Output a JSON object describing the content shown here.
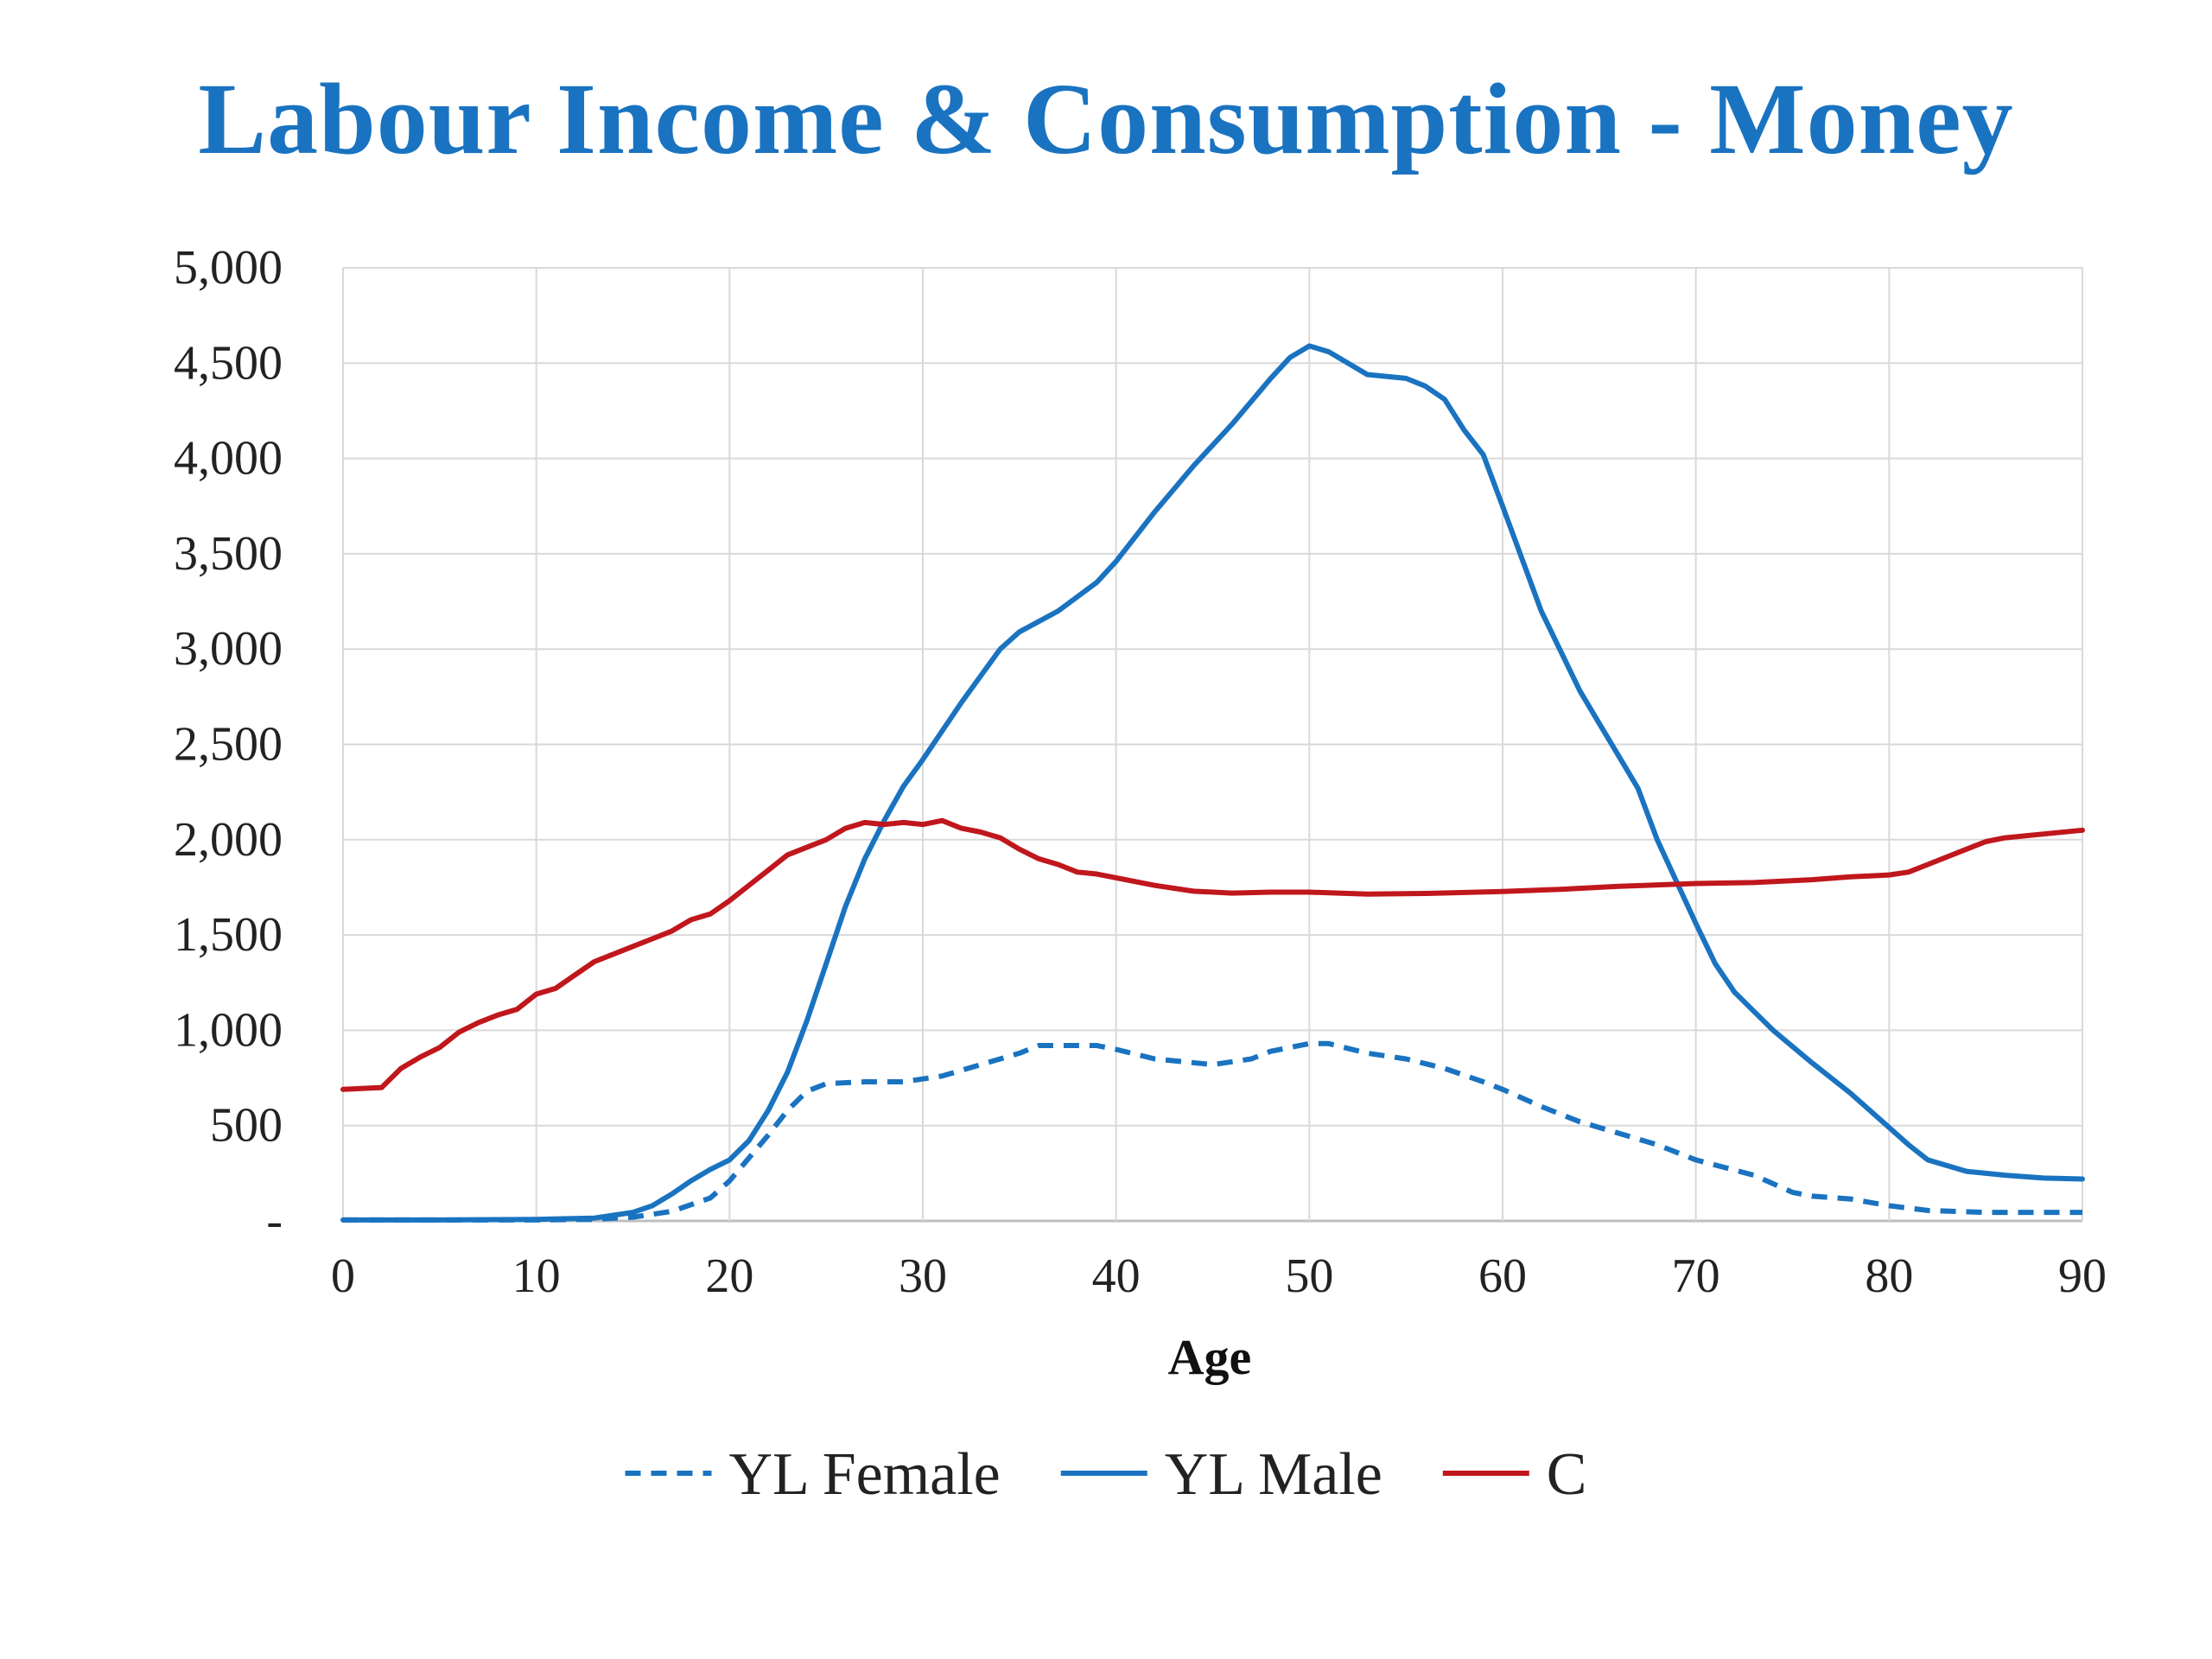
{
  "chart_data": {
    "type": "line",
    "title": "Labour Income & Consumption - Money",
    "xlabel": "Age",
    "ylabel": "",
    "xlim": [
      0,
      90
    ],
    "ylim": [
      0,
      5000
    ],
    "x_ticks": [
      0,
      10,
      20,
      30,
      40,
      50,
      60,
      70,
      80,
      90
    ],
    "x_tick_labels": [
      "0",
      "10",
      "20",
      "30",
      "40",
      "50",
      "60",
      "70",
      "80",
      "90"
    ],
    "y_ticks": [
      0,
      500,
      1000,
      1500,
      2000,
      2500,
      3000,
      3500,
      4000,
      4500,
      5000
    ],
    "y_tick_labels": [
      "-",
      "500",
      "1,000",
      "1,500",
      "2,000",
      "2,500",
      "3,000",
      "3,500",
      "4,000",
      "4,500",
      "5,000"
    ],
    "grid": true,
    "legend_position": "bottom",
    "series": [
      {
        "name": "YL Female",
        "color": "#1a73c0",
        "line_style": "dashed",
        "points": [
          [
            0,
            5
          ],
          [
            5,
            5
          ],
          [
            10,
            5
          ],
          [
            13,
            8
          ],
          [
            15,
            20
          ],
          [
            17,
            50
          ],
          [
            19,
            120
          ],
          [
            20,
            210
          ],
          [
            21,
            330
          ],
          [
            22,
            450
          ],
          [
            23,
            580
          ],
          [
            24,
            680
          ],
          [
            25,
            720
          ],
          [
            27,
            730
          ],
          [
            29,
            730
          ],
          [
            31,
            760
          ],
          [
            33,
            820
          ],
          [
            35,
            880
          ],
          [
            36,
            920
          ],
          [
            39,
            920
          ],
          [
            40,
            900
          ],
          [
            42,
            850
          ],
          [
            45,
            820
          ],
          [
            47,
            850
          ],
          [
            48,
            890
          ],
          [
            50,
            930
          ],
          [
            51,
            930
          ],
          [
            53,
            880
          ],
          [
            55,
            850
          ],
          [
            57,
            800
          ],
          [
            59,
            730
          ],
          [
            60,
            690
          ],
          [
            62,
            600
          ],
          [
            64,
            520
          ],
          [
            66,
            460
          ],
          [
            68,
            400
          ],
          [
            70,
            320
          ],
          [
            73,
            240
          ],
          [
            75,
            150
          ],
          [
            76,
            130
          ],
          [
            78,
            115
          ],
          [
            80,
            80
          ],
          [
            82,
            55
          ],
          [
            85,
            45
          ],
          [
            88,
            45
          ],
          [
            90,
            45
          ]
        ]
      },
      {
        "name": "YL Male",
        "color": "#1a73c0",
        "line_style": "solid",
        "points": [
          [
            0,
            5
          ],
          [
            5,
            5
          ],
          [
            10,
            8
          ],
          [
            13,
            15
          ],
          [
            15,
            45
          ],
          [
            16,
            80
          ],
          [
            17,
            140
          ],
          [
            18,
            210
          ],
          [
            19,
            270
          ],
          [
            20,
            320
          ],
          [
            21,
            420
          ],
          [
            22,
            580
          ],
          [
            23,
            780
          ],
          [
            24,
            1050
          ],
          [
            25,
            1350
          ],
          [
            26,
            1650
          ],
          [
            27,
            1900
          ],
          [
            28,
            2100
          ],
          [
            29,
            2280
          ],
          [
            30,
            2420
          ],
          [
            32,
            2720
          ],
          [
            34,
            3000
          ],
          [
            35,
            3090
          ],
          [
            37,
            3200
          ],
          [
            39,
            3350
          ],
          [
            40,
            3460
          ],
          [
            42,
            3720
          ],
          [
            44,
            3960
          ],
          [
            46,
            4180
          ],
          [
            48,
            4420
          ],
          [
            49,
            4530
          ],
          [
            50,
            4590
          ],
          [
            51,
            4560
          ],
          [
            52,
            4500
          ],
          [
            53,
            4440
          ],
          [
            55,
            4420
          ],
          [
            56,
            4380
          ],
          [
            57,
            4310
          ],
          [
            58,
            4150
          ],
          [
            59,
            4020
          ],
          [
            60,
            3750
          ],
          [
            62,
            3200
          ],
          [
            64,
            2780
          ],
          [
            65,
            2610
          ],
          [
            67,
            2270
          ],
          [
            68,
            2000
          ],
          [
            70,
            1560
          ],
          [
            71,
            1350
          ],
          [
            72,
            1200
          ],
          [
            74,
            1000
          ],
          [
            76,
            830
          ],
          [
            78,
            670
          ],
          [
            80,
            490
          ],
          [
            81,
            400
          ],
          [
            82,
            320
          ],
          [
            84,
            260
          ],
          [
            86,
            240
          ],
          [
            88,
            225
          ],
          [
            90,
            220
          ]
        ]
      },
      {
        "name": "C",
        "color": "#c0171d",
        "line_style": "solid",
        "points": [
          [
            0,
            690
          ],
          [
            2,
            700
          ],
          [
            3,
            800
          ],
          [
            4,
            860
          ],
          [
            5,
            910
          ],
          [
            6,
            990
          ],
          [
            7,
            1040
          ],
          [
            8,
            1080
          ],
          [
            9,
            1110
          ],
          [
            10,
            1190
          ],
          [
            11,
            1220
          ],
          [
            12,
            1290
          ],
          [
            13,
            1360
          ],
          [
            14,
            1400
          ],
          [
            15,
            1440
          ],
          [
            16,
            1480
          ],
          [
            17,
            1520
          ],
          [
            18,
            1580
          ],
          [
            19,
            1610
          ],
          [
            20,
            1680
          ],
          [
            21,
            1760
          ],
          [
            22,
            1840
          ],
          [
            23,
            1920
          ],
          [
            24,
            1960
          ],
          [
            25,
            2000
          ],
          [
            26,
            2060
          ],
          [
            27,
            2090
          ],
          [
            28,
            2080
          ],
          [
            29,
            2090
          ],
          [
            30,
            2080
          ],
          [
            31,
            2100
          ],
          [
            32,
            2060
          ],
          [
            33,
            2040
          ],
          [
            34,
            2010
          ],
          [
            35,
            1950
          ],
          [
            36,
            1900
          ],
          [
            37,
            1870
          ],
          [
            38,
            1830
          ],
          [
            39,
            1820
          ],
          [
            40,
            1800
          ],
          [
            41,
            1780
          ],
          [
            42,
            1760
          ],
          [
            44,
            1730
          ],
          [
            46,
            1720
          ],
          [
            48,
            1725
          ],
          [
            50,
            1725
          ],
          [
            53,
            1715
          ],
          [
            56,
            1718
          ],
          [
            60,
            1728
          ],
          [
            63,
            1740
          ],
          [
            66,
            1755
          ],
          [
            70,
            1770
          ],
          [
            73,
            1775
          ],
          [
            76,
            1790
          ],
          [
            78,
            1805
          ],
          [
            80,
            1815
          ],
          [
            81,
            1830
          ],
          [
            82,
            1870
          ],
          [
            84,
            1950
          ],
          [
            85,
            1990
          ],
          [
            86,
            2010
          ],
          [
            88,
            2030
          ],
          [
            90,
            2050
          ]
        ]
      }
    ]
  },
  "colors": {
    "title": "#1a73c0",
    "grid": "#d9d9d9",
    "axis": "#bfbfbf"
  }
}
